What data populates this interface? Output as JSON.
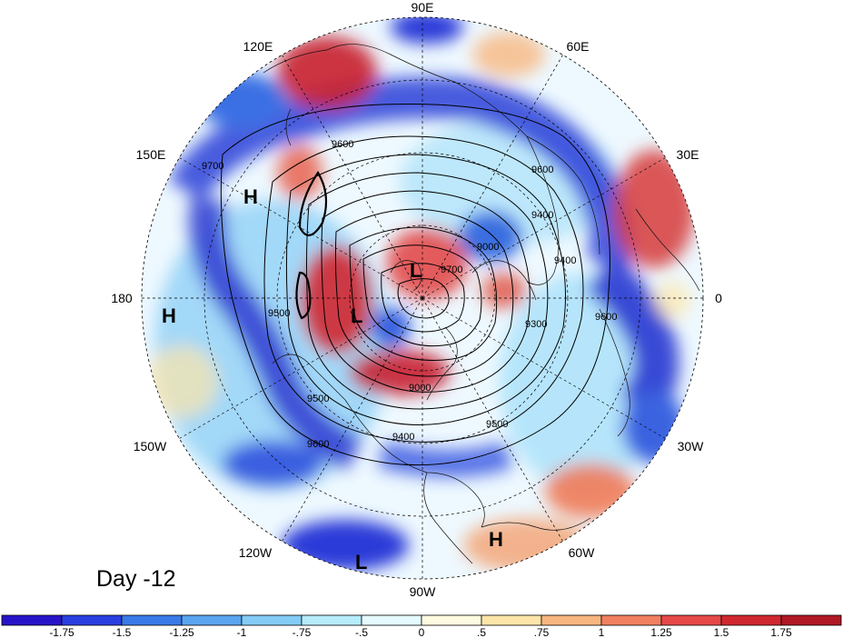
{
  "title": "Day -12",
  "longitude_labels": [
    {
      "text": "90E",
      "lon": 90
    },
    {
      "text": "60E",
      "lon": 60
    },
    {
      "text": "30E",
      "lon": 30
    },
    {
      "text": "0",
      "lon": 0
    },
    {
      "text": "30W",
      "lon": -30
    },
    {
      "text": "60W",
      "lon": -60
    },
    {
      "text": "90W",
      "lon": -90
    },
    {
      "text": "120W",
      "lon": -120
    },
    {
      "text": "150W",
      "lon": -150
    },
    {
      "text": "180",
      "lon": 180
    },
    {
      "text": "150E",
      "lon": 150
    },
    {
      "text": "120E",
      "lon": 120
    }
  ],
  "pressure_centers": [
    {
      "text": "H",
      "region": "north-pacific-west"
    },
    {
      "text": "H",
      "region": "dateline-south"
    },
    {
      "text": "L",
      "region": "pole-north"
    },
    {
      "text": "L",
      "region": "pole-west"
    },
    {
      "text": "H",
      "region": "tropical-atlantic"
    },
    {
      "text": "L",
      "region": "eastern-pacific"
    }
  ],
  "contour_labels": [
    "9700",
    "9600",
    "9600",
    "9400",
    "9000",
    "9700",
    "9400",
    "9600",
    "9500",
    "9300",
    "9000",
    "9400",
    "9500",
    "9600",
    "9500"
  ],
  "colorbar": {
    "ticks": [
      "-1.75",
      "-1.5",
      "-1.25",
      "-1",
      "-.75",
      "-.5",
      "0",
      ".5",
      ".75",
      "1",
      "1.25",
      "1.5",
      "1.75"
    ],
    "colors": [
      "#2814c8",
      "#2a3fe0",
      "#3a7ae8",
      "#5aa4f0",
      "#84ccf6",
      "#b6ecfb",
      "#e6fbff",
      "#fffbe2",
      "#fde5a8",
      "#f7b680",
      "#f08060",
      "#e64848",
      "#d02830",
      "#b01825"
    ]
  }
}
